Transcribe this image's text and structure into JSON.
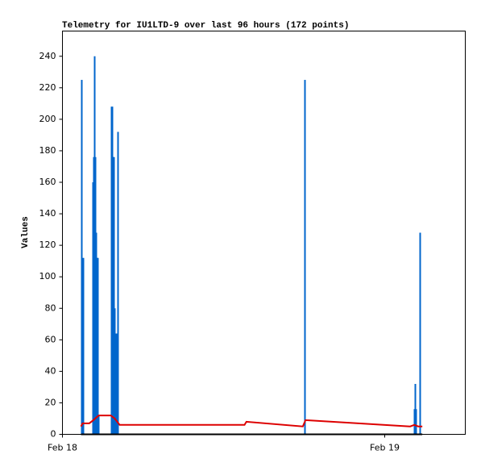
{
  "chart_data": {
    "type": "line",
    "title": "Telemetry for IU1LTD-9 over last 96 hours (172 points)",
    "y_label": "Values",
    "xlim": [
      0,
      30
    ],
    "ylim": [
      0,
      256
    ],
    "xticks": [
      {
        "value": 0,
        "label": "Feb 18"
      },
      {
        "value": 24,
        "label": "Feb 19"
      }
    ],
    "yticks": [
      0,
      20,
      40,
      60,
      80,
      100,
      120,
      140,
      160,
      180,
      200,
      220,
      240
    ],
    "series": [
      {
        "type": "bar",
        "color": "#0066cc",
        "x": [
          1.44,
          1.56,
          2.28,
          2.34,
          2.4,
          2.46,
          2.52,
          2.58,
          2.64,
          2.7,
          3.66,
          3.72,
          3.78,
          3.84,
          3.9,
          3.96,
          4.02,
          4.14,
          18.06,
          26.22,
          26.28,
          26.34,
          26.64
        ],
        "values": [
          225,
          112,
          160,
          176,
          240,
          176,
          128,
          112,
          112,
          12,
          208,
          208,
          176,
          176,
          80,
          64,
          64,
          192,
          225,
          16,
          32,
          16,
          128
        ]
      },
      {
        "type": "line",
        "color": "#dd0000",
        "x": [
          1.38,
          1.5,
          2.0,
          2.3,
          2.7,
          3.6,
          3.9,
          4.26,
          13.56,
          13.7,
          17.9,
          18.1,
          25.9,
          26.2,
          26.5,
          26.8
        ],
        "values": [
          5,
          7,
          7,
          9,
          12,
          12,
          10,
          6,
          6,
          8,
          5,
          9,
          5,
          6,
          5,
          5
        ]
      },
      {
        "type": "line",
        "color": "#000000",
        "x": [
          1.38,
          26.8
        ],
        "values": [
          0,
          0
        ]
      }
    ]
  }
}
